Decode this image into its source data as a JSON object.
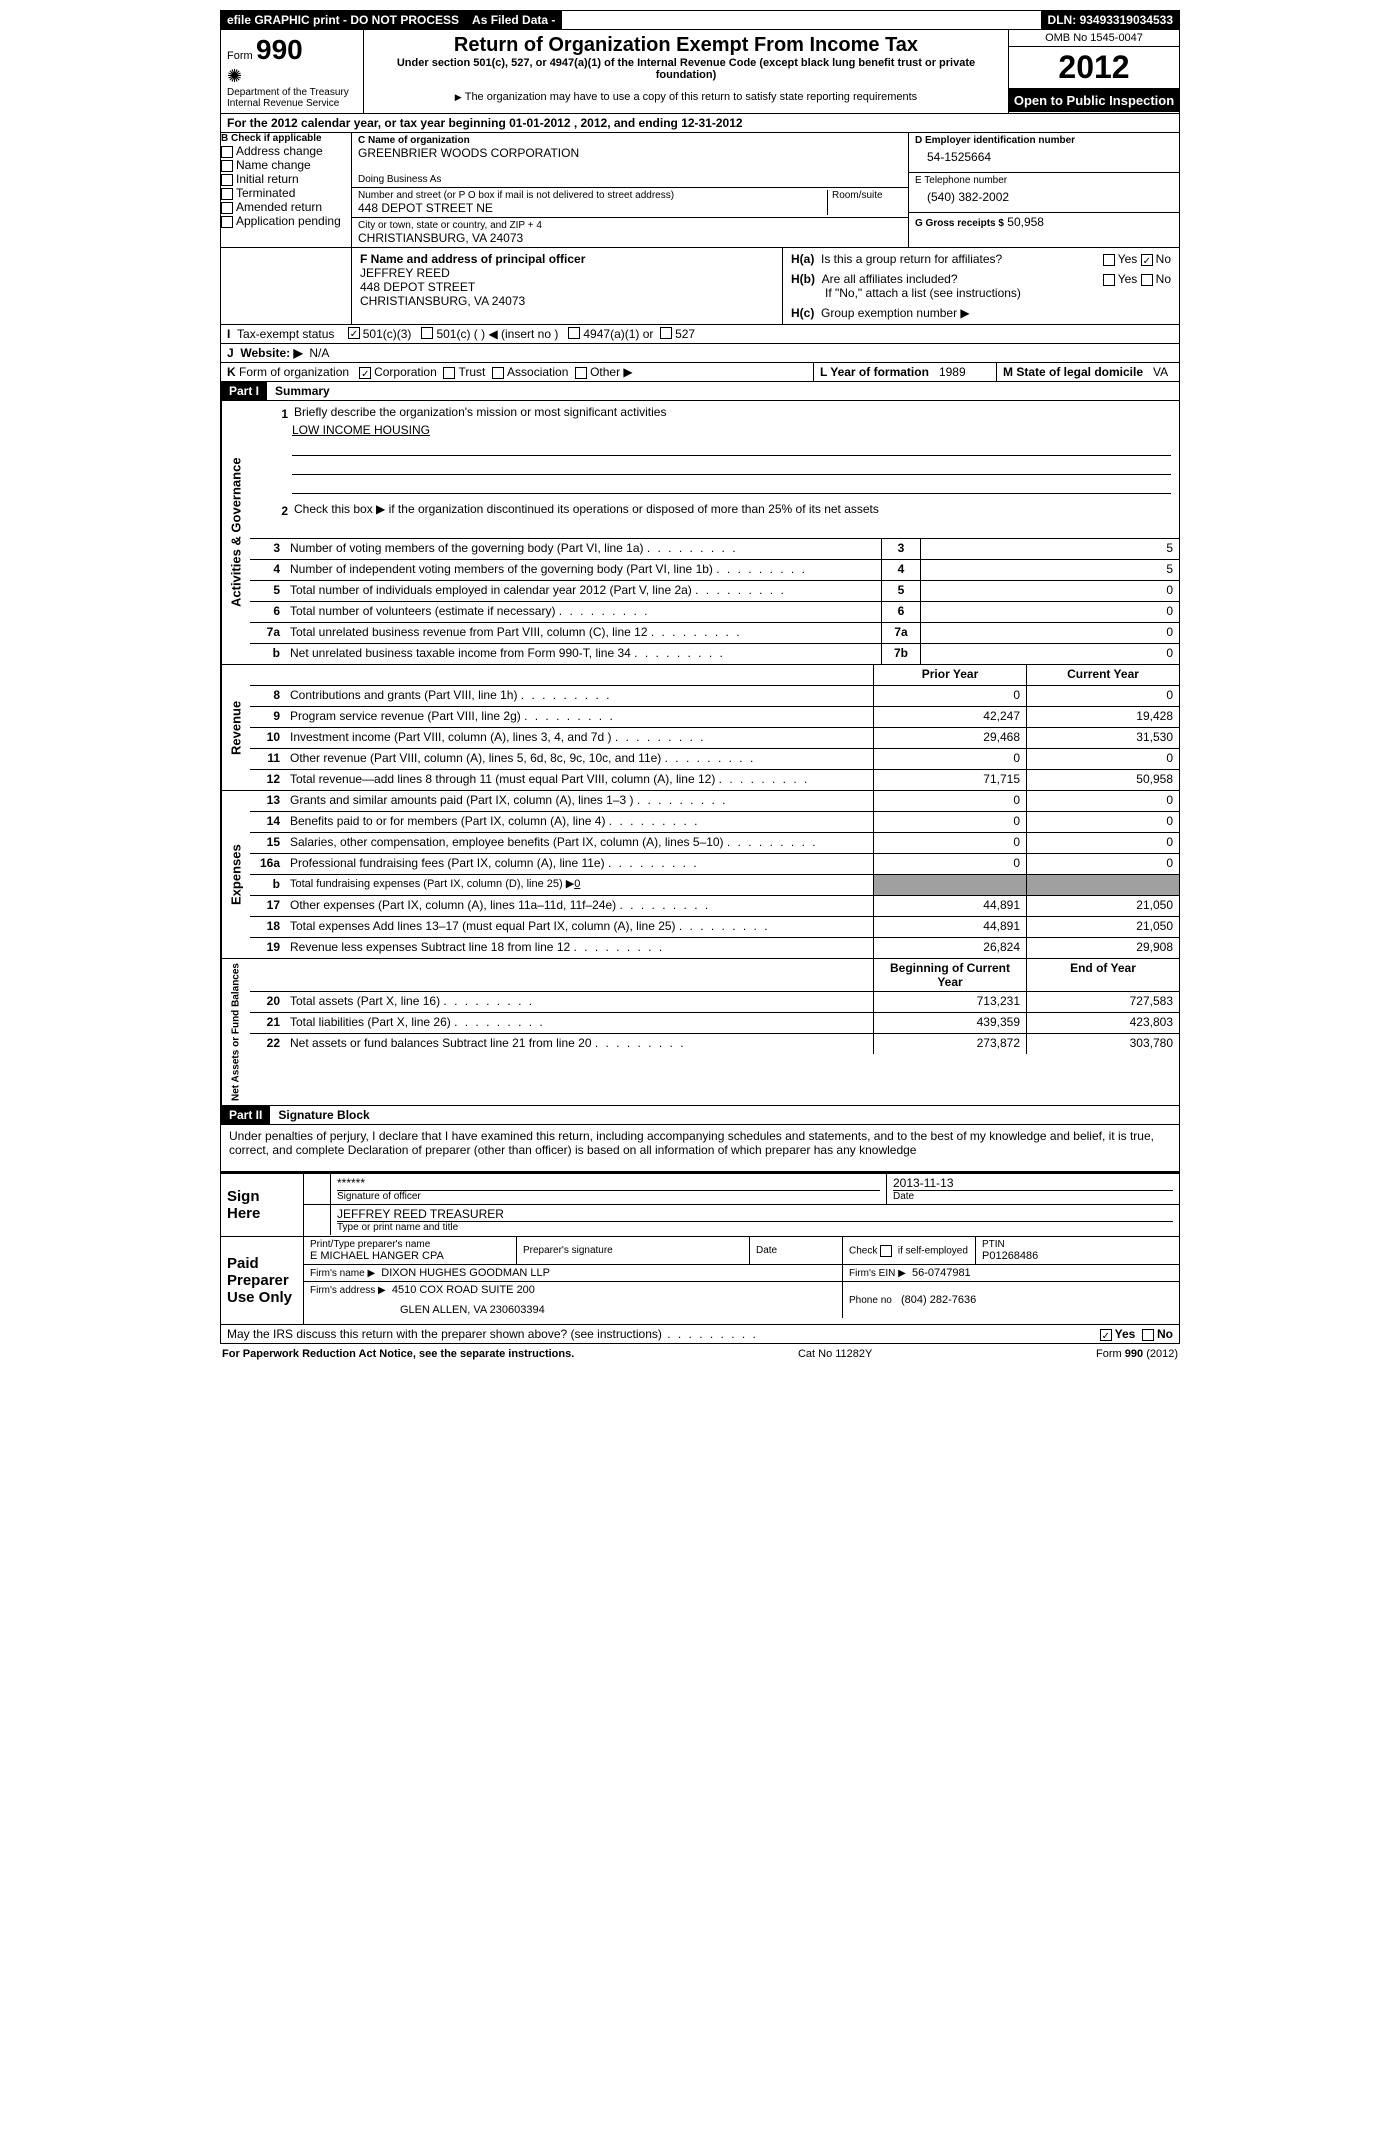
{
  "topbar": {
    "efile": "efile GRAPHIC print - DO NOT PROCESS",
    "asfiled": "As Filed Data -",
    "dln_label": "DLN:",
    "dln": "93493319034533"
  },
  "header": {
    "form_label": "Form",
    "form_num": "990",
    "dept": "Department of the Treasury",
    "irs": "Internal Revenue Service",
    "title": "Return of Organization Exempt From Income Tax",
    "sub1": "Under section 501(c), 527, or 4947(a)(1) of the Internal Revenue Code (except black lung benefit trust or private foundation)",
    "sub2": "The organization may have to use a copy of this return to satisfy state reporting requirements",
    "omb": "OMB No 1545-0047",
    "year": "2012",
    "inspection": "Open to Public Inspection"
  },
  "line_a": "For the 2012 calendar year, or tax year beginning 01-01-2012     , 2012, and ending 12-31-2012",
  "box_b": {
    "label": "B Check if applicable",
    "items": [
      "Address change",
      "Name change",
      "Initial return",
      "Terminated",
      "Amended return",
      "Application pending"
    ]
  },
  "box_c": {
    "name_label": "C Name of organization",
    "name": "GREENBRIER WOODS CORPORATION",
    "dba": "Doing Business As",
    "street_label": "Number and street (or P O  box if mail is not delivered to street address)",
    "room_label": "Room/suite",
    "street": "448 DEPOT STREET NE",
    "city_label": "City or town, state or country, and ZIP + 4",
    "city": "CHRISTIANSBURG, VA  24073"
  },
  "box_d": {
    "label": "D Employer identification number",
    "value": "54-1525664"
  },
  "box_e": {
    "label": "E Telephone number",
    "value": "(540) 382-2002"
  },
  "box_g": {
    "label": "G Gross receipts $",
    "value": "50,958"
  },
  "box_f": {
    "label": "F  Name and address of principal officer",
    "name": "JEFFREY REED",
    "street": "448 DEPOT STREET",
    "city": "CHRISTIANSBURG, VA  24073"
  },
  "box_h": {
    "ha": "Is this a group return for affiliates?",
    "hb": "Are all affiliates included?",
    "hb_note": "If \"No,\" attach a list  (see instructions)",
    "hc": "Group exemption number ▶",
    "yes": "Yes",
    "no": "No"
  },
  "line_i": "Tax-exempt status",
  "line_i_opts": [
    "501(c)(3)",
    "501(c) (   ) ◀ (insert no )",
    "4947(a)(1) or",
    "527"
  ],
  "line_j_label": "Website: ▶",
  "line_j_val": "N/A",
  "line_k": "Form of organization",
  "line_k_opts": [
    "Corporation",
    "Trust",
    "Association",
    "Other ▶"
  ],
  "line_l_label": "L Year of formation",
  "line_l_val": "1989",
  "line_m_label": "M State of legal domicile",
  "line_m_val": "VA",
  "part1": {
    "tag": "Part I",
    "title": "Summary"
  },
  "summary": {
    "sections": [
      {
        "label": "Activities & Governance",
        "pre": [
          {
            "num": "1",
            "text": "Briefly describe the organization's mission or most significant activities",
            "value": "LOW INCOME HOUSING"
          },
          {
            "num": "2",
            "text": "Check this box ▶     if the organization discontinued its operations or disposed of more than 25% of its net assets"
          }
        ],
        "lines": [
          {
            "num": "3",
            "text": "Number of voting members of the governing body (Part VI, line 1a)",
            "box": "3",
            "val": "5"
          },
          {
            "num": "4",
            "text": "Number of independent voting members of the governing body (Part VI, line 1b)",
            "box": "4",
            "val": "5"
          },
          {
            "num": "5",
            "text": "Total number of individuals employed in calendar year 2012 (Part V, line 2a)",
            "box": "5",
            "val": "0"
          },
          {
            "num": "6",
            "text": "Total number of volunteers (estimate if necessary)",
            "box": "6",
            "val": "0"
          },
          {
            "num": "7a",
            "text": "Total unrelated business revenue from Part VIII, column (C), line 12",
            "box": "7a",
            "val": "0"
          },
          {
            "num": "b",
            "text": "Net unrelated business taxable income from Form 990-T, line 34",
            "box": "7b",
            "val": "0"
          }
        ]
      },
      {
        "label": "Revenue",
        "header": {
          "prior": "Prior Year",
          "current": "Current Year"
        },
        "lines": [
          {
            "num": "8",
            "text": "Contributions and grants (Part VIII, line 1h)",
            "prior": "0",
            "current": "0"
          },
          {
            "num": "9",
            "text": "Program service revenue (Part VIII, line 2g)",
            "prior": "42,247",
            "current": "19,428"
          },
          {
            "num": "10",
            "text": "Investment income (Part VIII, column (A), lines 3, 4, and 7d )",
            "prior": "29,468",
            "current": "31,530"
          },
          {
            "num": "11",
            "text": "Other revenue (Part VIII, column (A), lines 5, 6d, 8c, 9c, 10c, and 11e)",
            "prior": "0",
            "current": "0"
          },
          {
            "num": "12",
            "text": "Total revenue—add lines 8 through 11 (must equal Part VIII, column (A), line 12)",
            "prior": "71,715",
            "current": "50,958"
          }
        ]
      },
      {
        "label": "Expenses",
        "lines": [
          {
            "num": "13",
            "text": "Grants and similar amounts paid (Part IX, column (A), lines 1–3 )",
            "prior": "0",
            "current": "0"
          },
          {
            "num": "14",
            "text": "Benefits paid to or for members (Part IX, column (A), line 4)",
            "prior": "0",
            "current": "0"
          },
          {
            "num": "15",
            "text": "Salaries, other compensation, employee benefits (Part IX, column (A), lines 5–10)",
            "prior": "0",
            "current": "0"
          },
          {
            "num": "16a",
            "text": "Professional fundraising fees (Part IX, column (A), line 11e)",
            "prior": "0",
            "current": "0"
          },
          {
            "num": "b",
            "text": "Total fundraising expenses (Part IX, column (D), line 25) ▶",
            "inline_val": "0",
            "shaded": true
          },
          {
            "num": "17",
            "text": "Other expenses (Part IX, column (A), lines 11a–11d, 11f–24e)",
            "prior": "44,891",
            "current": "21,050"
          },
          {
            "num": "18",
            "text": "Total expenses  Add lines 13–17 (must equal Part IX, column (A), line 25)",
            "prior": "44,891",
            "current": "21,050"
          },
          {
            "num": "19",
            "text": "Revenue less expenses  Subtract line 18 from line 12",
            "prior": "26,824",
            "current": "29,908"
          }
        ]
      },
      {
        "label": "Net Assets or Fund Balances",
        "header": {
          "prior": "Beginning of Current Year",
          "current": "End of Year"
        },
        "lines": [
          {
            "num": "20",
            "text": "Total assets (Part X, line 16)",
            "prior": "713,231",
            "current": "727,583"
          },
          {
            "num": "21",
            "text": "Total liabilities (Part X, line 26)",
            "prior": "439,359",
            "current": "423,803"
          },
          {
            "num": "22",
            "text": "Net assets or fund balances  Subtract line 21 from line 20",
            "prior": "273,872",
            "current": "303,780"
          }
        ]
      }
    ]
  },
  "part2": {
    "tag": "Part II",
    "title": "Signature Block"
  },
  "perjury": "Under penalties of perjury, I declare that I have examined this return, including accompanying schedules and statements, and to the best of my knowledge and belief, it is true, correct, and complete  Declaration of preparer (other than officer) is based on all information of which preparer has any knowledge",
  "sign": {
    "label": "Sign Here",
    "stars": "******",
    "sig_officer": "Signature of officer",
    "date": "2013-11-13",
    "date_label": "Date",
    "name_title": "JEFFREY REED TREASURER",
    "name_title_label": "Type or print name and title"
  },
  "paid": {
    "label": "Paid Preparer Use Only",
    "preparer_name_label": "Print/Type preparer's name",
    "preparer_name": "E MICHAEL HANGER CPA",
    "preparer_sig_label": "Preparer's signature",
    "date_label": "Date",
    "self_emp": "Check        if self-employed",
    "ptin_label": "PTIN",
    "ptin": "P01268486",
    "firm_name_label": "Firm's name     ▶",
    "firm_name": "DIXON HUGHES GOODMAN LLP",
    "firm_ein_label": "Firm's EIN ▶",
    "firm_ein": "56-0747981",
    "firm_addr_label": "Firm's address ▶",
    "firm_addr1": "4510 COX ROAD SUITE 200",
    "firm_addr2": "GLEN ALLEN, VA  230603394",
    "phone_label": "Phone no",
    "phone": "(804) 282-7636"
  },
  "discuss": "May the IRS discuss this return with the preparer shown above? (see instructions)",
  "discuss_yes": "Yes",
  "discuss_no": "No",
  "footer": {
    "left": "For Paperwork Reduction Act Notice, see the separate instructions.",
    "mid": "Cat No 11282Y",
    "right": "Form 990 (2012)"
  }
}
